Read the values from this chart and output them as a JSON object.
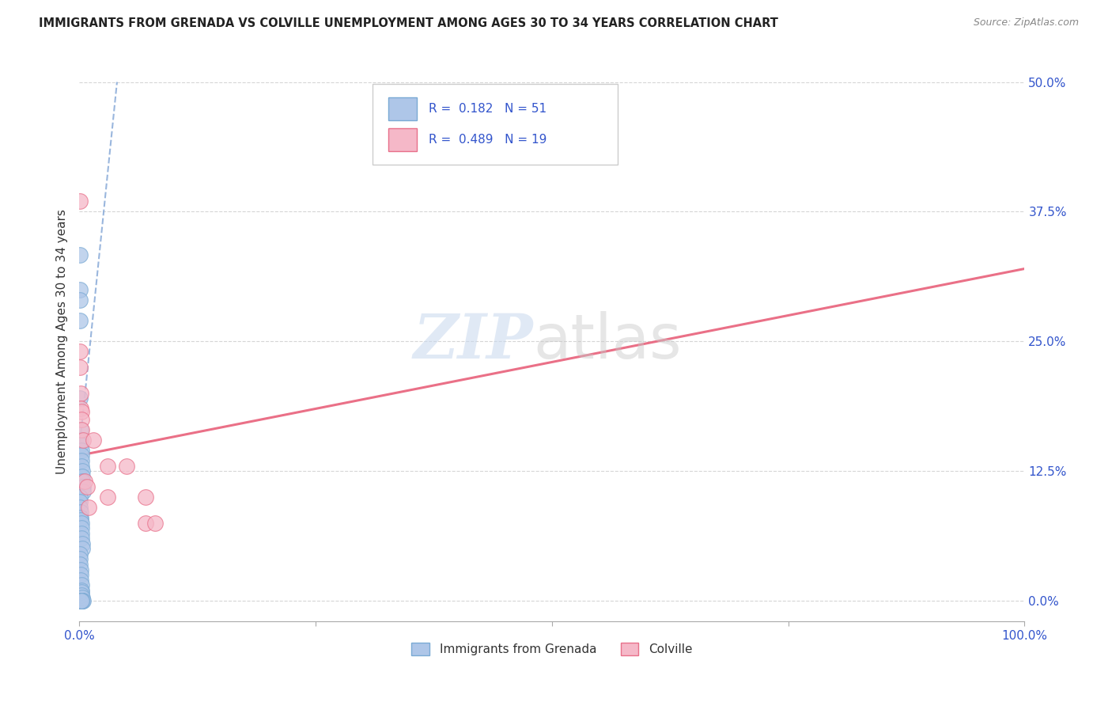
{
  "title": "IMMIGRANTS FROM GRENADA VS COLVILLE UNEMPLOYMENT AMONG AGES 30 TO 34 YEARS CORRELATION CHART",
  "source": "Source: ZipAtlas.com",
  "ylabel": "Unemployment Among Ages 30 to 34 years",
  "xmin": 0.0,
  "xmax": 1.0,
  "ymin": -0.02,
  "ymax": 0.52,
  "ytick_labels": [
    "0.0%",
    "12.5%",
    "25.0%",
    "37.5%",
    "50.0%"
  ],
  "ytick_values": [
    0.0,
    0.125,
    0.25,
    0.375,
    0.5
  ],
  "xtick_values": [
    0.0,
    0.25,
    0.5,
    0.75,
    1.0
  ],
  "xtick_labels_show": [
    "0.0%",
    "",
    "",
    "",
    "100.0%"
  ],
  "legend_r_blue": "0.182",
  "legend_n_blue": "51",
  "legend_r_pink": "0.489",
  "legend_n_pink": "19",
  "blue_color": "#aec6e8",
  "pink_color": "#f5b8c8",
  "blue_edge_color": "#7aaad4",
  "pink_edge_color": "#e8708a",
  "blue_line_color": "#88aad8",
  "pink_line_color": "#e8607a",
  "legend_text_color": "#3355cc",
  "blue_scatter": [
    [
      0.0008,
      0.333
    ],
    [
      0.001,
      0.3
    ],
    [
      0.0005,
      0.29
    ],
    [
      0.0005,
      0.27
    ],
    [
      0.0005,
      0.195
    ],
    [
      0.0012,
      0.165
    ],
    [
      0.0015,
      0.155
    ],
    [
      0.0018,
      0.15
    ],
    [
      0.002,
      0.145
    ],
    [
      0.0022,
      0.14
    ],
    [
      0.0025,
      0.135
    ],
    [
      0.0028,
      0.13
    ],
    [
      0.003,
      0.125
    ],
    [
      0.0032,
      0.12
    ],
    [
      0.0035,
      0.115
    ],
    [
      0.0038,
      0.11
    ],
    [
      0.004,
      0.105
    ],
    [
      0.0005,
      0.1
    ],
    [
      0.0008,
      0.095
    ],
    [
      0.001,
      0.09
    ],
    [
      0.0012,
      0.085
    ],
    [
      0.0015,
      0.08
    ],
    [
      0.0018,
      0.078
    ],
    [
      0.002,
      0.075
    ],
    [
      0.0022,
      0.07
    ],
    [
      0.0025,
      0.065
    ],
    [
      0.0028,
      0.06
    ],
    [
      0.003,
      0.055
    ],
    [
      0.0032,
      0.05
    ],
    [
      0.0005,
      0.045
    ],
    [
      0.0008,
      0.04
    ],
    [
      0.001,
      0.035
    ],
    [
      0.0012,
      0.03
    ],
    [
      0.0015,
      0.025
    ],
    [
      0.0018,
      0.02
    ],
    [
      0.002,
      0.015
    ],
    [
      0.0022,
      0.01
    ],
    [
      0.0025,
      0.008
    ],
    [
      0.0028,
      0.005
    ],
    [
      0.003,
      0.003
    ],
    [
      0.0032,
      0.0
    ],
    [
      0.0035,
      0.0
    ],
    [
      0.0038,
      0.0
    ],
    [
      0.0005,
      0.0
    ],
    [
      0.0008,
      0.0
    ],
    [
      0.001,
      0.0
    ],
    [
      0.0012,
      0.0
    ],
    [
      0.0015,
      0.0
    ],
    [
      0.0018,
      0.0
    ],
    [
      0.002,
      0.0
    ],
    [
      0.0022,
      0.0
    ]
  ],
  "pink_scatter": [
    [
      0.0008,
      0.385
    ],
    [
      0.001,
      0.24
    ],
    [
      0.0005,
      0.225
    ],
    [
      0.0012,
      0.2
    ],
    [
      0.0018,
      0.185
    ],
    [
      0.002,
      0.182
    ],
    [
      0.0025,
      0.175
    ],
    [
      0.0028,
      0.165
    ],
    [
      0.004,
      0.155
    ],
    [
      0.006,
      0.115
    ],
    [
      0.008,
      0.11
    ],
    [
      0.01,
      0.09
    ],
    [
      0.015,
      0.155
    ],
    [
      0.03,
      0.13
    ],
    [
      0.03,
      0.1
    ],
    [
      0.05,
      0.13
    ],
    [
      0.07,
      0.1
    ],
    [
      0.07,
      0.075
    ],
    [
      0.08,
      0.075
    ]
  ],
  "blue_trendline": [
    [
      0.0,
      0.145
    ],
    [
      0.04,
      0.5
    ]
  ],
  "pink_trendline": [
    [
      0.0,
      0.14
    ],
    [
      1.0,
      0.32
    ]
  ]
}
